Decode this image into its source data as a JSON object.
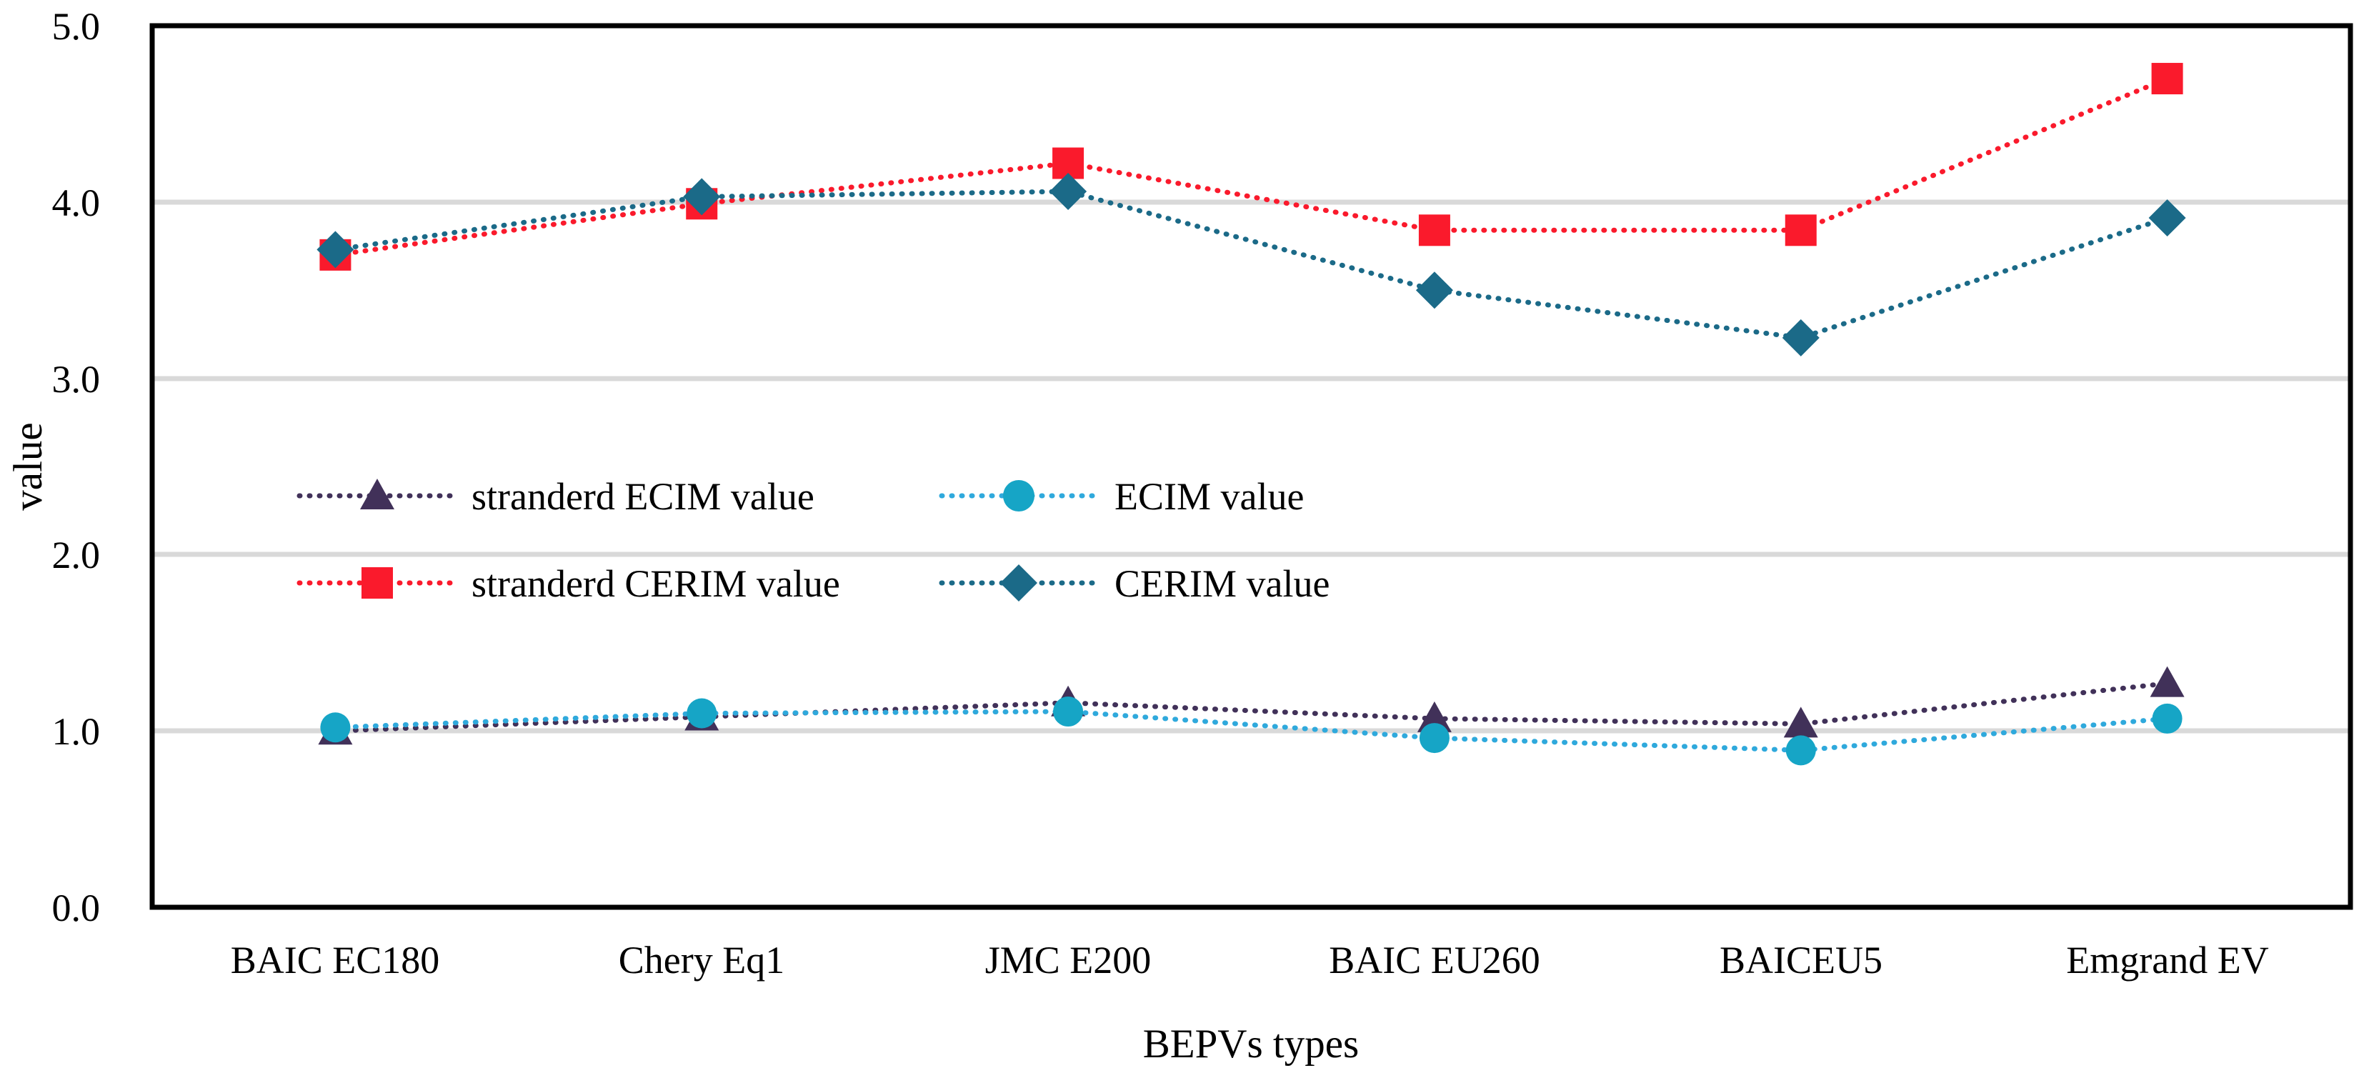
{
  "chart_data": {
    "type": "line",
    "title": "",
    "xlabel": "BEPVs types",
    "ylabel": "value",
    "ylim": [
      0,
      5
    ],
    "grid": true,
    "line_style": "dotted",
    "legend_position": "inside center-left, 2 columns x 2 rows",
    "ytick_labels": [
      "0.0",
      "1.0",
      "2.0",
      "3.0",
      "4.0",
      "5.0"
    ],
    "categories": [
      "BAIC EC180",
      "Chery Eq1",
      "JMC E200",
      "BAIC EU260",
      "BAICEU5",
      "Emgrand EV"
    ],
    "series": [
      {
        "name": "stranderd ECIM value",
        "marker": "triangle",
        "color": "#413159",
        "line_color": "#413159",
        "values": [
          1.0,
          1.08,
          1.16,
          1.07,
          1.04,
          1.27
        ]
      },
      {
        "name": "ECIM value",
        "marker": "circle",
        "color": "#16A5C6",
        "line_color": "#2FA9DC",
        "values": [
          1.02,
          1.1,
          1.11,
          0.96,
          0.89,
          1.07
        ]
      },
      {
        "name": "stranderd CERIM value",
        "marker": "square",
        "color": "#FA1A2C",
        "line_color": "#FA1A2C",
        "values": [
          3.7,
          3.99,
          4.22,
          3.84,
          3.84,
          4.7
        ]
      },
      {
        "name": "CERIM value",
        "marker": "diamond",
        "color": "#1B6A88",
        "line_color": "#1B6A88",
        "values": [
          3.73,
          4.03,
          4.06,
          3.5,
          3.23,
          3.91
        ]
      }
    ]
  }
}
